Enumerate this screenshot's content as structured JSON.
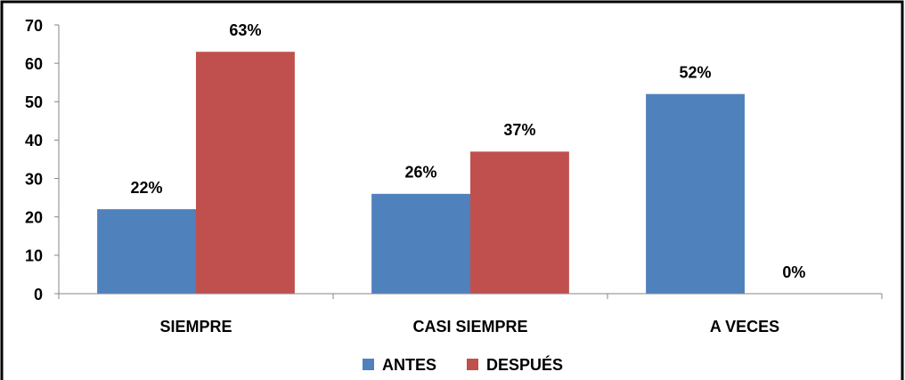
{
  "chart_data": {
    "type": "bar",
    "categories": [
      "SIEMPRE",
      "CASI SIEMPRE",
      "A VECES"
    ],
    "series": [
      {
        "name": "ANTES",
        "color": "#4f81bd",
        "values": [
          22,
          26,
          52
        ],
        "value_labels": [
          "22%",
          "26%",
          "52%"
        ]
      },
      {
        "name": "DESPUÉS",
        "color": "#c0504d",
        "values": [
          63,
          37,
          0
        ],
        "value_labels": [
          "63%",
          "37%",
          "0%"
        ]
      }
    ],
    "ylim": [
      0,
      70
    ],
    "yticks": [
      0,
      10,
      20,
      30,
      40,
      50,
      60,
      70
    ],
    "grid": false,
    "legend": "bottom"
  }
}
